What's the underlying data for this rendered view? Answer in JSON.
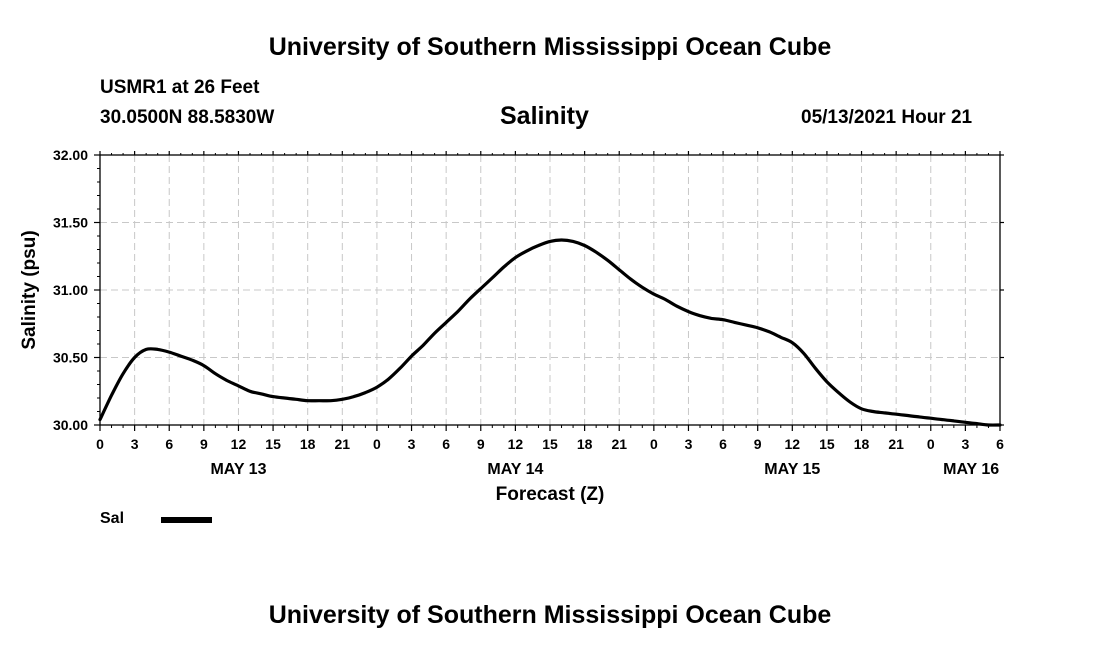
{
  "header": {
    "title": "University of Southern Mississippi Ocean Cube",
    "station": "USMR1 at 26 Feet",
    "coords": "30.0500N  88.5830W",
    "subtitle": "Salinity",
    "datetime": "05/13/2021 Hour 21"
  },
  "footer": {
    "title": "University of Southern Mississippi Ocean Cube"
  },
  "legend": {
    "label": "Sal",
    "color": "#000000"
  },
  "chart_data": {
    "type": "line",
    "title": "Salinity",
    "xlabel": "Forecast (Z)",
    "ylabel": "Salinity (psu)",
    "xlim": [
      0,
      78
    ],
    "ylim": [
      30.0,
      32.0
    ],
    "grid": true,
    "x_unit": "hours since May 13 00Z",
    "y_ticks": [
      "30.00",
      "30.50",
      "31.00",
      "31.50",
      "32.00"
    ],
    "x_ticks": [
      "0",
      "3",
      "6",
      "9",
      "12",
      "15",
      "18",
      "21",
      "0",
      "3",
      "6",
      "9",
      "12",
      "15",
      "18",
      "21",
      "0",
      "3",
      "6",
      "9",
      "12",
      "15",
      "18",
      "21",
      "0",
      "3",
      "6"
    ],
    "date_labels": [
      {
        "text": "MAY 13",
        "hour": 12
      },
      {
        "text": "MAY 14",
        "hour": 36
      },
      {
        "text": "MAY 15",
        "hour": 60
      },
      {
        "text": "MAY 16",
        "hour": 75.5
      }
    ],
    "series": [
      {
        "name": "Sal",
        "x": [
          0,
          1,
          2,
          3,
          4,
          5,
          6,
          7,
          8,
          9,
          10,
          11,
          12,
          13,
          14,
          15,
          16,
          17,
          18,
          19,
          20,
          21,
          22,
          23,
          24,
          25,
          26,
          27,
          28,
          29,
          30,
          31,
          32,
          33,
          34,
          35,
          36,
          37,
          38,
          39,
          40,
          41,
          42,
          43,
          44,
          45,
          46,
          47,
          48,
          49,
          50,
          51,
          52,
          53,
          54,
          55,
          56,
          57,
          58,
          59,
          60,
          61,
          62,
          63,
          64,
          65,
          66,
          67,
          68,
          69,
          70,
          71,
          72,
          73,
          74,
          75,
          76,
          77,
          78
        ],
        "values": [
          30.04,
          30.22,
          30.38,
          30.5,
          30.56,
          30.56,
          30.54,
          30.51,
          30.48,
          30.44,
          30.38,
          30.33,
          30.29,
          30.25,
          30.23,
          30.21,
          30.2,
          30.19,
          30.18,
          30.18,
          30.18,
          30.19,
          30.21,
          30.24,
          30.28,
          30.34,
          30.42,
          30.51,
          30.59,
          30.68,
          30.76,
          30.84,
          30.93,
          31.01,
          31.09,
          31.17,
          31.24,
          31.29,
          31.33,
          31.36,
          31.37,
          31.36,
          31.33,
          31.28,
          31.22,
          31.15,
          31.08,
          31.02,
          30.97,
          30.93,
          30.88,
          30.84,
          30.81,
          30.79,
          30.78,
          30.76,
          30.74,
          30.72,
          30.69,
          30.65,
          30.61,
          30.53,
          30.42,
          30.32,
          30.24,
          30.17,
          30.12,
          30.1,
          30.09,
          30.08,
          30.07,
          30.06,
          30.05,
          30.04,
          30.03,
          30.02,
          30.01,
          30.0,
          29.99
        ]
      }
    ]
  }
}
